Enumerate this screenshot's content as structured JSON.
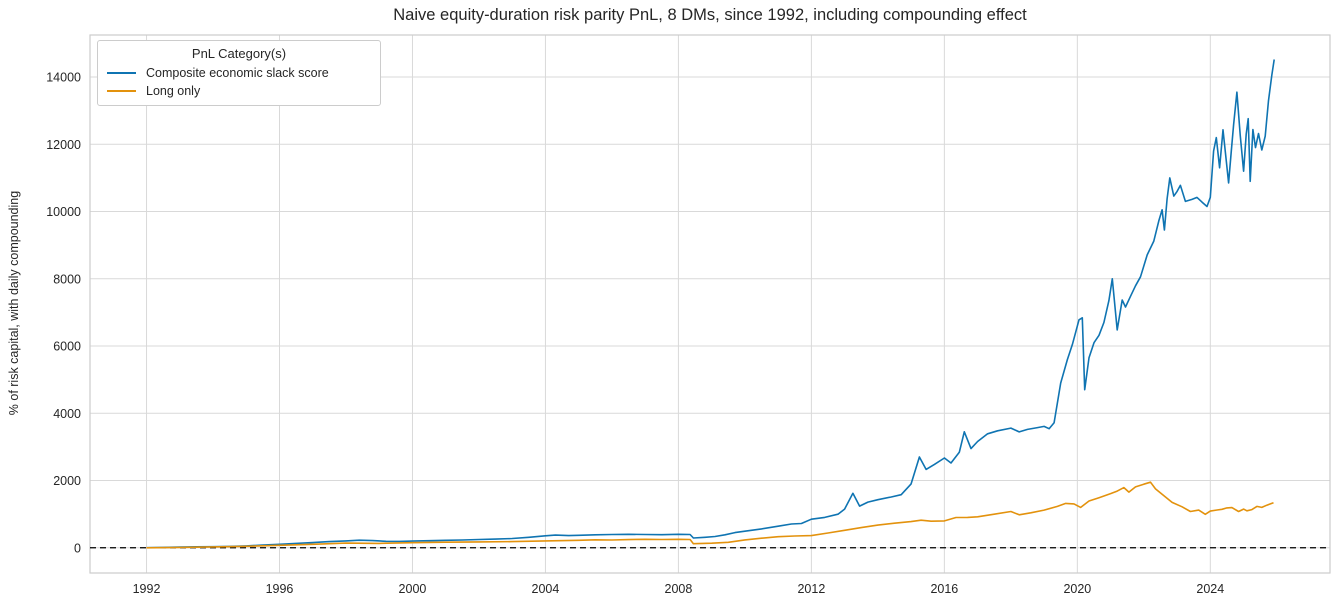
{
  "chart_data": {
    "type": "line",
    "title": "Naive equity-duration risk parity PnL, 8 DMs, since 1992, including compounding effect",
    "xlabel": "",
    "ylabel": "% of risk capital, with daily compounding",
    "xlim": [
      1990.3,
      2027.6
    ],
    "ylim": [
      -750,
      15250
    ],
    "x_ticks": [
      1992,
      1996,
      2000,
      2004,
      2008,
      2012,
      2016,
      2020,
      2024
    ],
    "y_ticks": [
      0,
      2000,
      4000,
      6000,
      8000,
      10000,
      12000,
      14000
    ],
    "grid": true,
    "grid_color": "#d9d9d9",
    "spine_color": "#cccccc",
    "text_color": "#262626",
    "zero_line": {
      "value": 0,
      "style": "dashed",
      "color": "#000000"
    },
    "legend": {
      "title": "PnL Category(s)",
      "position": "upper-left"
    },
    "series": [
      {
        "name": "Composite economic slack score",
        "color": "#0f74b2",
        "points": [
          [
            1992.0,
            2
          ],
          [
            1992.5,
            10
          ],
          [
            1993.0,
            22
          ],
          [
            1993.5,
            30
          ],
          [
            1994.0,
            32
          ],
          [
            1994.5,
            40
          ],
          [
            1995.0,
            55
          ],
          [
            1995.5,
            80
          ],
          [
            1996.0,
            105
          ],
          [
            1996.5,
            130
          ],
          [
            1997.0,
            155
          ],
          [
            1997.5,
            185
          ],
          [
            1998.0,
            205
          ],
          [
            1998.4,
            225
          ],
          [
            1998.8,
            215
          ],
          [
            1999.2,
            192
          ],
          [
            1999.6,
            190
          ],
          [
            2000.0,
            200
          ],
          [
            2000.5,
            212
          ],
          [
            2001.0,
            222
          ],
          [
            2001.5,
            232
          ],
          [
            2002.0,
            245
          ],
          [
            2002.5,
            258
          ],
          [
            2003.0,
            275
          ],
          [
            2003.5,
            312
          ],
          [
            2004.0,
            355
          ],
          [
            2004.3,
            378
          ],
          [
            2004.7,
            362
          ],
          [
            2005.0,
            372
          ],
          [
            2005.5,
            386
          ],
          [
            2006.0,
            396
          ],
          [
            2006.5,
            402
          ],
          [
            2007.0,
            396
          ],
          [
            2007.5,
            390
          ],
          [
            2008.0,
            400
          ],
          [
            2008.35,
            396
          ],
          [
            2008.45,
            292
          ],
          [
            2008.8,
            312
          ],
          [
            2009.1,
            336
          ],
          [
            2009.4,
            385
          ],
          [
            2009.7,
            450
          ],
          [
            2010.0,
            492
          ],
          [
            2010.5,
            562
          ],
          [
            2011.0,
            642
          ],
          [
            2011.4,
            706
          ],
          [
            2011.7,
            722
          ],
          [
            2012.0,
            850
          ],
          [
            2012.4,
            905
          ],
          [
            2012.8,
            1000
          ],
          [
            2013.0,
            1150
          ],
          [
            2013.25,
            1620
          ],
          [
            2013.45,
            1240
          ],
          [
            2013.7,
            1360
          ],
          [
            2014.0,
            1430
          ],
          [
            2014.4,
            1510
          ],
          [
            2014.7,
            1580
          ],
          [
            2015.0,
            1900
          ],
          [
            2015.25,
            2700
          ],
          [
            2015.45,
            2330
          ],
          [
            2015.7,
            2480
          ],
          [
            2016.0,
            2670
          ],
          [
            2016.2,
            2520
          ],
          [
            2016.45,
            2840
          ],
          [
            2016.6,
            3450
          ],
          [
            2016.8,
            2950
          ],
          [
            2017.0,
            3160
          ],
          [
            2017.3,
            3390
          ],
          [
            2017.6,
            3480
          ],
          [
            2018.0,
            3560
          ],
          [
            2018.25,
            3445
          ],
          [
            2018.5,
            3520
          ],
          [
            2018.8,
            3575
          ],
          [
            2019.0,
            3610
          ],
          [
            2019.15,
            3540
          ],
          [
            2019.3,
            3720
          ],
          [
            2019.5,
            4900
          ],
          [
            2019.7,
            5600
          ],
          [
            2019.85,
            6050
          ],
          [
            2020.05,
            6780
          ],
          [
            2020.15,
            6840
          ],
          [
            2020.22,
            4700
          ],
          [
            2020.35,
            5650
          ],
          [
            2020.5,
            6100
          ],
          [
            2020.65,
            6320
          ],
          [
            2020.8,
            6700
          ],
          [
            2020.95,
            7350
          ],
          [
            2021.05,
            8000
          ],
          [
            2021.2,
            6480
          ],
          [
            2021.35,
            7370
          ],
          [
            2021.45,
            7160
          ],
          [
            2021.6,
            7480
          ],
          [
            2021.75,
            7790
          ],
          [
            2021.9,
            8060
          ],
          [
            2022.1,
            8710
          ],
          [
            2022.3,
            9120
          ],
          [
            2022.45,
            9720
          ],
          [
            2022.55,
            10050
          ],
          [
            2022.62,
            9450
          ],
          [
            2022.7,
            10380
          ],
          [
            2022.78,
            11000
          ],
          [
            2022.9,
            10460
          ],
          [
            2023.0,
            10600
          ],
          [
            2023.1,
            10780
          ],
          [
            2023.25,
            10300
          ],
          [
            2023.45,
            10360
          ],
          [
            2023.6,
            10420
          ],
          [
            2023.75,
            10280
          ],
          [
            2023.9,
            10150
          ],
          [
            2024.0,
            10420
          ],
          [
            2024.1,
            11800
          ],
          [
            2024.18,
            12200
          ],
          [
            2024.28,
            11300
          ],
          [
            2024.38,
            12430
          ],
          [
            2024.48,
            11500
          ],
          [
            2024.55,
            10850
          ],
          [
            2024.63,
            11800
          ],
          [
            2024.7,
            12580
          ],
          [
            2024.8,
            13550
          ],
          [
            2024.9,
            12280
          ],
          [
            2025.0,
            11200
          ],
          [
            2025.08,
            12300
          ],
          [
            2025.14,
            12760
          ],
          [
            2025.2,
            10900
          ],
          [
            2025.28,
            12440
          ],
          [
            2025.36,
            11900
          ],
          [
            2025.45,
            12320
          ],
          [
            2025.55,
            11830
          ],
          [
            2025.65,
            12240
          ],
          [
            2025.75,
            13300
          ],
          [
            2025.85,
            14050
          ],
          [
            2025.92,
            14520
          ]
        ]
      },
      {
        "name": "Long only",
        "color": "#e3920d",
        "points": [
          [
            1992.0,
            0
          ],
          [
            1993.0,
            12
          ],
          [
            1994.0,
            25
          ],
          [
            1995.0,
            45
          ],
          [
            1996.0,
            75
          ],
          [
            1997.0,
            105
          ],
          [
            1998.0,
            140
          ],
          [
            1999.0,
            130
          ],
          [
            2000.0,
            150
          ],
          [
            2001.0,
            165
          ],
          [
            2002.0,
            175
          ],
          [
            2003.0,
            185
          ],
          [
            2004.0,
            205
          ],
          [
            2005.0,
            222
          ],
          [
            2005.5,
            236
          ],
          [
            2006.0,
            230
          ],
          [
            2006.5,
            242
          ],
          [
            2007.0,
            252
          ],
          [
            2007.5,
            246
          ],
          [
            2008.0,
            252
          ],
          [
            2008.35,
            246
          ],
          [
            2008.45,
            122
          ],
          [
            2009.0,
            136
          ],
          [
            2009.5,
            162
          ],
          [
            2010.0,
            235
          ],
          [
            2010.5,
            286
          ],
          [
            2011.0,
            330
          ],
          [
            2011.5,
            350
          ],
          [
            2012.0,
            362
          ],
          [
            2012.5,
            440
          ],
          [
            2013.0,
            520
          ],
          [
            2013.5,
            600
          ],
          [
            2014.0,
            675
          ],
          [
            2014.5,
            732
          ],
          [
            2015.0,
            780
          ],
          [
            2015.3,
            820
          ],
          [
            2015.6,
            790
          ],
          [
            2016.0,
            800
          ],
          [
            2016.35,
            900
          ],
          [
            2016.7,
            905
          ],
          [
            2017.0,
            920
          ],
          [
            2017.5,
            1000
          ],
          [
            2018.0,
            1080
          ],
          [
            2018.25,
            980
          ],
          [
            2018.6,
            1040
          ],
          [
            2019.0,
            1120
          ],
          [
            2019.4,
            1230
          ],
          [
            2019.65,
            1320
          ],
          [
            2019.9,
            1305
          ],
          [
            2020.1,
            1200
          ],
          [
            2020.35,
            1390
          ],
          [
            2020.65,
            1490
          ],
          [
            2021.0,
            1610
          ],
          [
            2021.2,
            1685
          ],
          [
            2021.4,
            1790
          ],
          [
            2021.55,
            1655
          ],
          [
            2021.75,
            1812
          ],
          [
            2022.0,
            1890
          ],
          [
            2022.2,
            1950
          ],
          [
            2022.35,
            1750
          ],
          [
            2022.55,
            1590
          ],
          [
            2022.85,
            1350
          ],
          [
            2023.15,
            1220
          ],
          [
            2023.4,
            1080
          ],
          [
            2023.65,
            1120
          ],
          [
            2023.85,
            995
          ],
          [
            2024.0,
            1090
          ],
          [
            2024.2,
            1125
          ],
          [
            2024.35,
            1145
          ],
          [
            2024.5,
            1185
          ],
          [
            2024.65,
            1195
          ],
          [
            2024.85,
            1080
          ],
          [
            2025.0,
            1150
          ],
          [
            2025.1,
            1100
          ],
          [
            2025.25,
            1135
          ],
          [
            2025.4,
            1230
          ],
          [
            2025.55,
            1200
          ],
          [
            2025.7,
            1265
          ],
          [
            2025.9,
            1340
          ]
        ]
      }
    ]
  }
}
